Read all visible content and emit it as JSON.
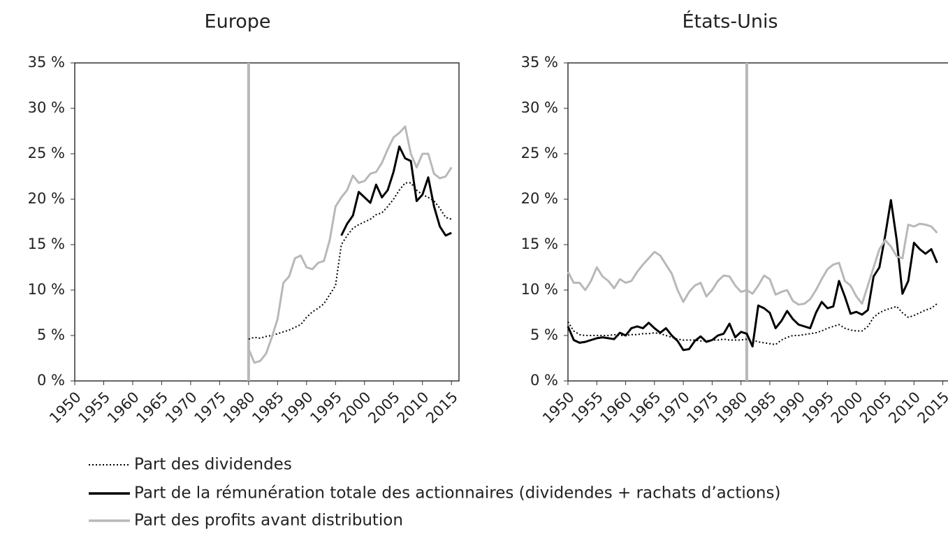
{
  "chart_data": [
    {
      "type": "line",
      "title": "Europe",
      "x": [
        1980,
        1981,
        1982,
        1983,
        1984,
        1985,
        1986,
        1987,
        1988,
        1989,
        1990,
        1991,
        1992,
        1993,
        1994,
        1995,
        1996,
        1997,
        1998,
        1999,
        2000,
        2001,
        2002,
        2003,
        2004,
        2005,
        2006,
        2007,
        2008,
        2009,
        2010,
        2011,
        2012,
        2013,
        2014,
        2015
      ],
      "series": [
        {
          "name": "Part des dividendes",
          "color": "#000000",
          "dash": "dotted",
          "values": [
            4.6,
            4.8,
            4.7,
            4.9,
            5.0,
            5.2,
            5.4,
            5.6,
            5.9,
            6.2,
            7.0,
            7.6,
            8.0,
            8.5,
            9.5,
            10.5,
            15.0,
            16.0,
            16.8,
            17.2,
            17.5,
            17.8,
            18.3,
            18.5,
            19.2,
            20.0,
            21.0,
            21.8,
            21.8,
            21.0,
            20.5,
            20.2,
            19.8,
            19.0,
            18.0,
            17.8
          ]
        },
        {
          "name": "Part de la rémunération totale des actionnaires (dividendes + rachats d’actions)",
          "color": "#000000",
          "dash": "solid",
          "values": [
            null,
            null,
            null,
            null,
            null,
            null,
            null,
            null,
            null,
            null,
            null,
            null,
            null,
            null,
            null,
            null,
            16.0,
            17.3,
            18.2,
            20.8,
            20.2,
            19.6,
            21.6,
            20.2,
            21.0,
            23.0,
            25.8,
            24.5,
            24.2,
            19.8,
            20.5,
            22.4,
            19.2,
            17.0,
            16.0,
            16.3
          ]
        },
        {
          "name": "Part des profits avant distribution",
          "color": "#b8b8b8",
          "dash": "solid",
          "values": [
            3.5,
            2.0,
            2.2,
            3.0,
            4.8,
            6.8,
            10.8,
            11.5,
            13.5,
            13.8,
            12.5,
            12.3,
            13.0,
            13.2,
            15.5,
            19.2,
            20.2,
            21.0,
            22.6,
            21.8,
            22.0,
            22.8,
            23.0,
            24.0,
            25.5,
            26.8,
            27.3,
            28.0,
            25.0,
            23.5,
            25.0,
            25.0,
            22.8,
            22.3,
            22.5,
            23.5
          ]
        }
      ],
      "vline": 1980,
      "vline_color": "#b8b8b8",
      "xlim": [
        1950,
        2016.3
      ],
      "xticks": [
        1950,
        1955,
        1960,
        1965,
        1970,
        1975,
        1980,
        1985,
        1990,
        1995,
        2000,
        2005,
        2010,
        2015
      ],
      "ylim": [
        0,
        35
      ],
      "yticks": [
        {
          "value": 0,
          "label": "0 %"
        },
        {
          "value": 5,
          "label": "5 %"
        },
        {
          "value": 10,
          "label": "10 %"
        },
        {
          "value": 15,
          "label": "15 %"
        },
        {
          "value": 20,
          "label": "20 %"
        },
        {
          "value": 25,
          "label": "25 %"
        },
        {
          "value": 30,
          "label": "30 %"
        },
        {
          "value": 35,
          "label": "35 %"
        }
      ]
    },
    {
      "type": "line",
      "title": "États-Unis",
      "x": [
        1950,
        1951,
        1952,
        1953,
        1954,
        1955,
        1956,
        1957,
        1958,
        1959,
        1960,
        1961,
        1962,
        1963,
        1964,
        1965,
        1966,
        1967,
        1968,
        1969,
        1970,
        1971,
        1972,
        1973,
        1974,
        1975,
        1976,
        1977,
        1978,
        1979,
        1980,
        1981,
        1982,
        1983,
        1984,
        1985,
        1986,
        1987,
        1988,
        1989,
        1990,
        1991,
        1992,
        1993,
        1994,
        1995,
        1996,
        1997,
        1998,
        1999,
        2000,
        2001,
        2002,
        2003,
        2004,
        2005,
        2006,
        2007,
        2008,
        2009,
        2010,
        2011,
        2012,
        2013,
        2014
      ],
      "series": [
        {
          "color": "#000000",
          "dash": "dotted",
          "values": [
            6.5,
            5.5,
            5.1,
            5.0,
            5.0,
            5.0,
            5.0,
            5.0,
            5.1,
            5.0,
            5.0,
            5.1,
            5.1,
            5.2,
            5.2,
            5.3,
            5.2,
            5.0,
            4.8,
            4.6,
            4.5,
            4.5,
            4.5,
            4.4,
            4.4,
            4.5,
            4.5,
            4.6,
            4.5,
            4.5,
            4.5,
            4.6,
            4.5,
            4.3,
            4.2,
            4.1,
            4.0,
            4.5,
            4.8,
            5.0,
            5.0,
            5.1,
            5.2,
            5.3,
            5.5,
            5.8,
            6.0,
            6.2,
            5.8,
            5.6,
            5.5,
            5.5,
            6.0,
            7.0,
            7.5,
            7.8,
            8.0,
            8.2,
            7.5,
            7.0,
            7.2,
            7.5,
            7.8,
            8.0,
            8.5
          ]
        },
        {
          "color": "#000000",
          "dash": "solid",
          "values": [
            6.0,
            4.5,
            4.2,
            4.3,
            4.5,
            4.7,
            4.8,
            4.7,
            4.6,
            5.3,
            5.0,
            5.8,
            6.0,
            5.8,
            6.4,
            5.8,
            5.3,
            5.8,
            5.0,
            4.4,
            3.4,
            3.5,
            4.4,
            4.9,
            4.3,
            4.5,
            5.0,
            5.2,
            6.3,
            4.8,
            5.4,
            5.2,
            3.8,
            8.3,
            8.0,
            7.5,
            5.8,
            6.6,
            7.7,
            6.8,
            6.2,
            6.0,
            5.8,
            7.5,
            8.7,
            8.0,
            8.2,
            11.0,
            9.3,
            7.4,
            7.6,
            7.3,
            7.8,
            11.5,
            12.5,
            16.0,
            19.9,
            15.5,
            9.6,
            11.0,
            15.2,
            14.5,
            14.0,
            14.5,
            13.0
          ]
        },
        {
          "color": "#b8b8b8",
          "dash": "solid",
          "values": [
            12.0,
            10.8,
            10.8,
            10.0,
            11.0,
            12.5,
            11.5,
            11.0,
            10.2,
            11.2,
            10.8,
            11.0,
            12.0,
            12.8,
            13.5,
            14.2,
            13.8,
            12.8,
            11.8,
            10.0,
            8.7,
            9.8,
            10.5,
            10.8,
            9.3,
            10.0,
            11.0,
            11.6,
            11.5,
            10.5,
            9.8,
            10.0,
            9.6,
            10.5,
            11.6,
            11.2,
            9.5,
            9.8,
            10.0,
            8.8,
            8.4,
            8.5,
            9.0,
            10.0,
            11.2,
            12.3,
            12.8,
            13.0,
            11.0,
            10.5,
            9.3,
            8.5,
            10.5,
            12.5,
            14.5,
            15.5,
            14.8,
            13.7,
            13.5,
            17.2,
            17.0,
            17.3,
            17.2,
            17.0,
            16.3
          ]
        }
      ],
      "vline": 1981,
      "vline_color": "#b8b8b8",
      "xlim": [
        1950,
        2016.5
      ],
      "xticks": [
        1950,
        1955,
        1960,
        1965,
        1970,
        1975,
        1980,
        1985,
        1990,
        1995,
        2000,
        2005,
        2010,
        2015
      ],
      "ylim": [
        0,
        35
      ],
      "yticks": [
        {
          "value": 0,
          "label": "0 %"
        },
        {
          "value": 5,
          "label": "5 %"
        },
        {
          "value": 10,
          "label": "10 %"
        },
        {
          "value": 15,
          "label": "15 %"
        },
        {
          "value": 20,
          "label": "20 %"
        },
        {
          "value": 25,
          "label": "25 %"
        },
        {
          "value": 30,
          "label": "30 %"
        },
        {
          "value": 35,
          "label": "35 %"
        }
      ]
    }
  ]
}
